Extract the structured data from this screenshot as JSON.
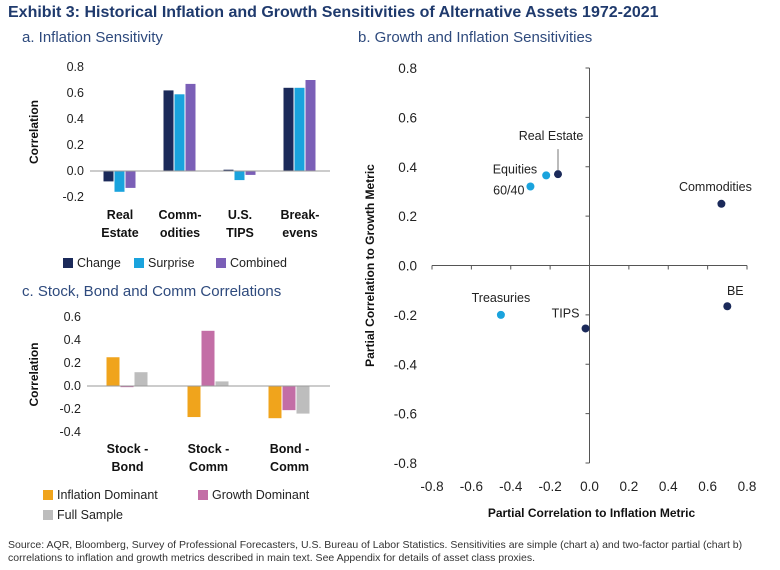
{
  "title": "Exhibit 3: Historical Inflation and Growth Sensitivities of Alternative Assets 1972-2021",
  "source": "Source: AQR, Bloomberg, Survey of Professional Forecasters, U.S. Bureau of Labor Statistics. Sensitivities are simple (chart a) and two-factor partial (chart b) correlations to inflation and growth metrics described in main text. See Appendix for details of asset class proxies.",
  "chart_data": [
    {
      "id": "a",
      "type": "bar",
      "title": "a. Inflation Sensitivity",
      "ylabel": "Correlation",
      "ylim": [
        -0.2,
        0.8
      ],
      "yticks": [
        "0.8",
        "0.6",
        "0.4",
        "0.2",
        "0.0",
        "-0.2"
      ],
      "categories": [
        [
          "Real",
          "Estate"
        ],
        [
          "Comm-",
          "odities"
        ],
        [
          "U.S.",
          "TIPS"
        ],
        [
          "Break-",
          "evens"
        ]
      ],
      "series": [
        {
          "name": "Change",
          "color": "#1b2a5a",
          "values": [
            -0.08,
            0.62,
            0.01,
            0.64
          ]
        },
        {
          "name": "Surprise",
          "color": "#1aa3dd",
          "values": [
            -0.16,
            0.59,
            -0.07,
            0.64
          ]
        },
        {
          "name": "Combined",
          "color": "#7b5fb7",
          "values": [
            -0.13,
            0.67,
            -0.03,
            0.7
          ]
        }
      ]
    },
    {
      "id": "c",
      "type": "bar",
      "title": "c. Stock, Bond and Comm Correlations",
      "ylabel": "Correlation",
      "ylim": [
        -0.4,
        0.6
      ],
      "yticks": [
        "0.6",
        "0.4",
        "0.2",
        "0.0",
        "-0.2",
        "-0.4"
      ],
      "categories": [
        [
          "Stock -",
          "Bond"
        ],
        [
          "Stock -",
          "Comm"
        ],
        [
          "Bond -",
          "Comm"
        ]
      ],
      "series": [
        {
          "name": "Inflation Dominant",
          "color": "#f0a41c",
          "values": [
            0.25,
            -0.27,
            -0.28
          ]
        },
        {
          "name": "Growth Dominant",
          "color": "#c36ea6",
          "values": [
            -0.01,
            0.48,
            -0.21
          ]
        },
        {
          "name": "Full Sample",
          "color": "#bdbdbd",
          "values": [
            0.12,
            0.04,
            -0.24
          ]
        }
      ]
    },
    {
      "id": "b",
      "type": "scatter",
      "title": "b. Growth and Inflation Sensitivities",
      "xlabel": "Partial Correlation to Inflation Metric",
      "ylabel": "Partial Correlation to Growth Metric",
      "xlim": [
        -0.8,
        0.8
      ],
      "ylim": [
        -0.8,
        0.8
      ],
      "xticks": [
        "-0.8",
        "-0.6",
        "-0.4",
        "-0.2",
        "0.0",
        "0.2",
        "0.4",
        "0.6",
        "0.8"
      ],
      "yticks": [
        "0.8",
        "0.6",
        "0.4",
        "0.2",
        "0.0",
        "-0.2",
        "-0.4",
        "-0.6",
        "-0.8"
      ],
      "points": [
        {
          "label": "Real Estate",
          "x": -0.16,
          "y": 0.37,
          "color": "#1b2a5a"
        },
        {
          "label": "Equities",
          "x": -0.22,
          "y": 0.365,
          "color": "#1aa3dd"
        },
        {
          "label": "60/40",
          "x": -0.3,
          "y": 0.32,
          "color": "#1aa3dd"
        },
        {
          "label": "Commodities",
          "x": 0.67,
          "y": 0.25,
          "color": "#1b2a5a"
        },
        {
          "label": "Treasuries",
          "x": -0.45,
          "y": -0.2,
          "color": "#1aa3dd"
        },
        {
          "label": "TIPS",
          "x": -0.02,
          "y": -0.255,
          "color": "#1b2a5a"
        },
        {
          "label": "BE",
          "x": 0.7,
          "y": -0.165,
          "color": "#1b2a5a"
        }
      ]
    }
  ]
}
